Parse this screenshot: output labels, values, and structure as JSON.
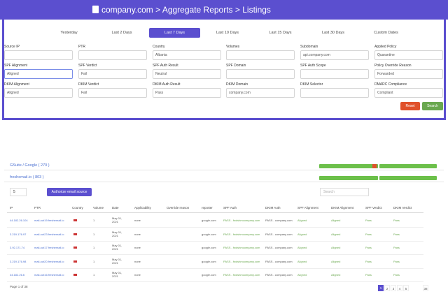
{
  "header": {
    "title": "company.com > Aggregate Reports > Listings"
  },
  "tabs": {
    "items": [
      "Yesterday",
      "Last 2 Days",
      "Last 7 Days",
      "Last 10 Days",
      "Last 15 Days",
      "Last 30 Days",
      "Custom Dates"
    ],
    "active": 2
  },
  "filters": [
    [
      {
        "label": "Source IP"
      },
      {
        "label": "PTR"
      },
      {
        "label": "Country",
        "value": "Albania"
      },
      {
        "label": "Volumes"
      },
      {
        "label": "Subdomain",
        "value": "api.company.com"
      },
      {
        "label": "Applied Policy",
        "value": "Quarantine"
      }
    ],
    [
      {
        "label": "SPF Alignment",
        "value": "Aligned"
      },
      {
        "label": "SPF Verdict",
        "value": "Fail"
      },
      {
        "label": "SPF Auth Result",
        "value": "Neutral"
      },
      {
        "label": "SPF Domain"
      },
      {
        "label": "SPF Auth Scope"
      },
      {
        "label": "Policy Override Reason",
        "value": "Forwarded"
      }
    ],
    [
      {
        "label": "DKIM Alignment",
        "value": "Aligned"
      },
      {
        "label": "DKIM Verdict",
        "value": "Fail"
      },
      {
        "label": "DKIM Auth Result",
        "value": "Pass"
      },
      {
        "label": "DKIM Domain",
        "value": "company.com"
      },
      {
        "label": "DKIM Selector"
      },
      {
        "label": "DMARC Compliance",
        "value": "Compliant"
      }
    ]
  ],
  "buttons": {
    "reset": "Reset",
    "search": "Search"
  },
  "groups": [
    "GSuite / Google ( 270 )",
    "freshemail.io ( 803 )"
  ],
  "controls": {
    "page_size": "5",
    "authorize": "Authorize email source",
    "search_placeholder": "Search"
  },
  "table": {
    "columns": [
      "IP",
      "PTR",
      "Country",
      "Volume",
      "Date",
      "Applicability",
      "Override reason",
      "reporter",
      "SPF Auth",
      "DKIM Auth",
      "SPF Alignment",
      "DKIM Alignment",
      "SPF Verdict",
      "DKIM Verdict"
    ],
    "rows": [
      {
        "ip": "44.182.26.104",
        "ptr": "mail-out19.freshemail.io",
        "volume": 1,
        "date": "May 01, 2021",
        "applicability": "none",
        "reporter": "google.com",
        "spf_auth": "PASS - fwdshmcompany.com",
        "dkim_auth": "PASS - company.com",
        "spf_alignment": "Aligned",
        "dkim_alignment": "Aligned",
        "spf_verdict": "Pass",
        "dkim_verdict": "Pass"
      },
      {
        "ip": "3.219.176.97",
        "ptr": "mail-out23.freshemail.io",
        "volume": 1,
        "date": "May 01, 2021",
        "applicability": "none",
        "reporter": "google.com",
        "spf_auth": "PASS - fwdshmcompany.com",
        "dkim_auth": "PASS - company.com",
        "spf_alignment": "Aligned",
        "dkim_alignment": "Aligned",
        "spf_verdict": "Pass",
        "dkim_verdict": "Pass"
      },
      {
        "ip": "3.92.171.74",
        "ptr": "mail-out17.freshemail.io",
        "volume": 1,
        "date": "May 01, 2021",
        "applicability": "none",
        "reporter": "google.com",
        "spf_auth": "PASS - fwdshmcompany.com",
        "dkim_auth": "PASS - company.com",
        "spf_alignment": "Aligned",
        "dkim_alignment": "Aligned",
        "spf_verdict": "Pass",
        "dkim_verdict": "Pass"
      },
      {
        "ip": "3.219.176.98",
        "ptr": "mail-out20.freshemail.io",
        "volume": 1,
        "date": "May 01, 2021",
        "applicability": "none",
        "reporter": "google.com",
        "spf_auth": "PASS - fwdshmcompany.com",
        "dkim_auth": "PASS - company.com",
        "spf_alignment": "Aligned",
        "dkim_alignment": "Aligned",
        "spf_verdict": "Pass",
        "dkim_verdict": "Pass"
      },
      {
        "ip": "44.182.26.6",
        "ptr": "mail-out16.freshemail.io",
        "volume": 1,
        "date": "May 01, 2021",
        "applicability": "none",
        "reporter": "google.com",
        "spf_auth": "PASS - fwdshmcompany.com",
        "dkim_auth": "PASS - company.com",
        "spf_alignment": "Aligned",
        "dkim_alignment": "Aligned",
        "spf_verdict": "Pass",
        "dkim_verdict": "Pass"
      }
    ]
  },
  "footer": {
    "page_info": "Page 1 of 38",
    "pages": [
      "1",
      "2",
      "3",
      "4",
      "5",
      "38"
    ],
    "active_page": 0
  }
}
